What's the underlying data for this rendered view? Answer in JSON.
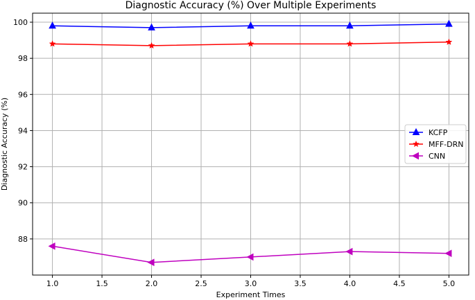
{
  "chart_data": {
    "type": "line",
    "title": "Diagnostic Accuracy (%) Over Multiple Experiments",
    "xlabel": "Experiment Times",
    "ylabel": "Diagnostic Accuracy (%)",
    "xlim": [
      0.8,
      5.2
    ],
    "ylim": [
      86.0,
      100.5
    ],
    "xticks": [
      1.0,
      1.5,
      2.0,
      2.5,
      3.0,
      3.5,
      4.0,
      4.5,
      5.0
    ],
    "xtick_labels": [
      "1.0",
      "1.5",
      "2.0",
      "2.5",
      "3.0",
      "3.5",
      "4.0",
      "4.5",
      "5.0"
    ],
    "yticks": [
      88,
      90,
      92,
      94,
      96,
      98,
      100
    ],
    "ytick_labels": [
      "88",
      "90",
      "92",
      "94",
      "96",
      "98",
      "100"
    ],
    "grid": true,
    "legend_position": "center-right",
    "x": [
      1,
      2,
      3,
      4,
      5
    ],
    "series": [
      {
        "name": "KCFP",
        "color": "#0000ff",
        "marker": "triangle-up",
        "values": [
          99.8,
          99.7,
          99.8,
          99.8,
          99.9
        ]
      },
      {
        "name": "MFF-DRN",
        "color": "#ff0000",
        "marker": "star",
        "values": [
          98.8,
          98.7,
          98.8,
          98.8,
          98.9
        ]
      },
      {
        "name": "CNN",
        "color": "#bf00bf",
        "marker": "triangle-left",
        "values": [
          87.6,
          86.7,
          87.0,
          87.3,
          87.2
        ]
      }
    ]
  }
}
